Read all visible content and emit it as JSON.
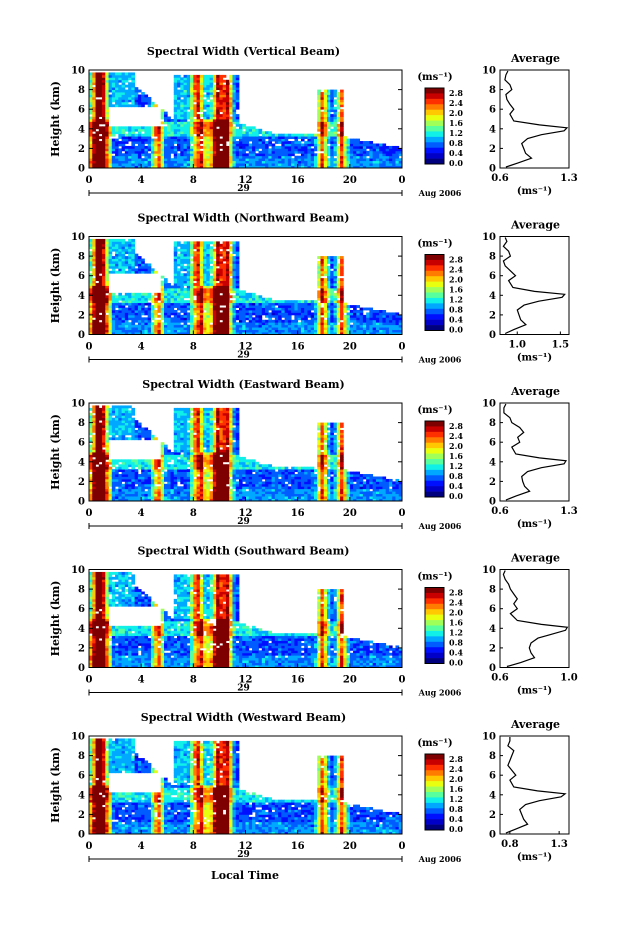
{
  "figure": {
    "xlabel": "Local Time",
    "date_label": "Aug 2006",
    "day_label": "29",
    "unit_label": "(ms⁻¹)",
    "avg_title": "Average",
    "avg_xlabel": "(ms⁻¹)"
  },
  "colorbar": {
    "ticks": [
      "2.8",
      "2.4",
      "2.0",
      "1.6",
      "1.2",
      "0.8",
      "0.4",
      "0.0"
    ],
    "colors": [
      "#00007f",
      "#0000c8",
      "#0010ff",
      "#005cff",
      "#00a8ff",
      "#10f0e8",
      "#58ff9f",
      "#a0ff58",
      "#e8ff10",
      "#ffc800",
      "#ff7c00",
      "#ff3000",
      "#c80000",
      "#7f0000"
    ]
  },
  "chart_data": [
    {
      "type": "heatmap",
      "title": "Spectral Width (Vertical Beam)",
      "ylabel": "Height (km)",
      "xticks": [
        "0",
        "4",
        "8",
        "12",
        "16",
        "20",
        "0"
      ],
      "yticks": [
        "0",
        "2",
        "4",
        "6",
        "8",
        "10"
      ],
      "xlim": [
        0,
        24
      ],
      "ylim": [
        0,
        10
      ],
      "avg": {
        "title": "Average",
        "xticks": [
          "0.6",
          "1.3"
        ],
        "xlim": [
          0.6,
          1.3
        ],
        "yticks": [
          "0",
          "2",
          "4",
          "6",
          "8",
          "10"
        ],
        "profile": [
          [
            0.66,
            0.1
          ],
          [
            0.78,
            0.5
          ],
          [
            0.92,
            1.0
          ],
          [
            0.86,
            1.5
          ],
          [
            0.84,
            2.0
          ],
          [
            0.82,
            2.5
          ],
          [
            0.88,
            3.0
          ],
          [
            1.02,
            3.4
          ],
          [
            1.25,
            3.8
          ],
          [
            1.28,
            4.1
          ],
          [
            1.0,
            4.4
          ],
          [
            0.74,
            4.8
          ],
          [
            0.7,
            5.5
          ],
          [
            0.74,
            6.0
          ],
          [
            0.7,
            6.5
          ],
          [
            0.67,
            7.0
          ],
          [
            0.66,
            7.5
          ],
          [
            0.72,
            8.0
          ],
          [
            0.7,
            8.5
          ],
          [
            0.65,
            9.0
          ],
          [
            0.66,
            9.5
          ],
          [
            0.68,
            9.9
          ]
        ]
      }
    },
    {
      "type": "heatmap",
      "title": "Spectral Width (Northward Beam)",
      "ylabel": "Height (km)",
      "xticks": [
        "0",
        "4",
        "8",
        "12",
        "16",
        "20",
        "0"
      ],
      "yticks": [
        "0",
        "2",
        "4",
        "6",
        "8",
        "10"
      ],
      "xlim": [
        0,
        24
      ],
      "ylim": [
        0,
        10
      ],
      "avg": {
        "title": "Average",
        "xticks": [
          "1.0",
          "1.5"
        ],
        "xlim": [
          0.8,
          1.6
        ],
        "yticks": [
          "0",
          "2",
          "4",
          "6",
          "8",
          "10"
        ],
        "profile": [
          [
            0.86,
            0.1
          ],
          [
            0.96,
            0.5
          ],
          [
            1.1,
            1.0
          ],
          [
            1.04,
            1.5
          ],
          [
            1.02,
            2.0
          ],
          [
            1.0,
            2.5
          ],
          [
            1.08,
            3.0
          ],
          [
            1.25,
            3.4
          ],
          [
            1.52,
            3.8
          ],
          [
            1.55,
            4.1
          ],
          [
            1.2,
            4.4
          ],
          [
            0.95,
            4.8
          ],
          [
            0.9,
            5.5
          ],
          [
            0.98,
            6.0
          ],
          [
            0.92,
            6.5
          ],
          [
            0.86,
            7.0
          ],
          [
            0.84,
            7.5
          ],
          [
            0.92,
            8.0
          ],
          [
            0.9,
            8.5
          ],
          [
            0.84,
            9.0
          ],
          [
            0.88,
            9.5
          ],
          [
            0.86,
            9.9
          ]
        ]
      }
    },
    {
      "type": "heatmap",
      "title": "Spectral Width (Eastward Beam)",
      "ylabel": "Height (km)",
      "xticks": [
        "0",
        "4",
        "8",
        "12",
        "16",
        "20",
        "0"
      ],
      "yticks": [
        "0",
        "2",
        "4",
        "6",
        "8",
        "10"
      ],
      "xlim": [
        0,
        24
      ],
      "ylim": [
        0,
        10
      ],
      "avg": {
        "title": "Average",
        "xticks": [
          "0.6",
          "1.3"
        ],
        "xlim": [
          0.6,
          1.3
        ],
        "yticks": [
          "0",
          "2",
          "4",
          "6",
          "8",
          "10"
        ],
        "profile": [
          [
            0.66,
            0.1
          ],
          [
            0.76,
            0.5
          ],
          [
            0.9,
            1.0
          ],
          [
            0.85,
            1.5
          ],
          [
            0.83,
            2.0
          ],
          [
            0.82,
            2.5
          ],
          [
            0.88,
            3.0
          ],
          [
            1.02,
            3.4
          ],
          [
            1.25,
            3.8
          ],
          [
            1.27,
            4.1
          ],
          [
            1.0,
            4.4
          ],
          [
            0.76,
            4.8
          ],
          [
            0.72,
            5.5
          ],
          [
            0.8,
            6.0
          ],
          [
            0.78,
            6.5
          ],
          [
            0.84,
            7.0
          ],
          [
            0.8,
            7.5
          ],
          [
            0.72,
            8.0
          ],
          [
            0.7,
            8.5
          ],
          [
            0.64,
            9.0
          ],
          [
            0.64,
            9.5
          ],
          [
            0.66,
            9.9
          ]
        ]
      }
    },
    {
      "type": "heatmap",
      "title": "Spectral Width (Southward Beam)",
      "ylabel": "Height (km)",
      "xticks": [
        "0",
        "4",
        "8",
        "12",
        "16",
        "20",
        "0"
      ],
      "yticks": [
        "0",
        "2",
        "4",
        "6",
        "8",
        "10"
      ],
      "xlim": [
        0,
        24
      ],
      "ylim": [
        0,
        10
      ],
      "avg": {
        "title": "Average",
        "xticks": [
          "0.6",
          "1.0"
        ],
        "xlim": [
          0.6,
          1.0
        ],
        "yticks": [
          "0",
          "2",
          "4",
          "6",
          "8",
          "10"
        ],
        "profile": [
          [
            0.64,
            0.1
          ],
          [
            0.72,
            0.5
          ],
          [
            0.8,
            1.0
          ],
          [
            0.78,
            1.5
          ],
          [
            0.77,
            2.0
          ],
          [
            0.78,
            2.5
          ],
          [
            0.82,
            3.0
          ],
          [
            0.9,
            3.4
          ],
          [
            0.98,
            3.8
          ],
          [
            0.99,
            4.1
          ],
          [
            0.84,
            4.4
          ],
          [
            0.7,
            4.8
          ],
          [
            0.66,
            5.5
          ],
          [
            0.7,
            6.0
          ],
          [
            0.68,
            6.5
          ],
          [
            0.7,
            7.0
          ],
          [
            0.68,
            7.5
          ],
          [
            0.66,
            8.0
          ],
          [
            0.65,
            8.5
          ],
          [
            0.63,
            9.0
          ],
          [
            0.62,
            9.5
          ],
          [
            0.63,
            9.9
          ]
        ]
      }
    },
    {
      "type": "heatmap",
      "title": "Spectral Width (Westward Beam)",
      "ylabel": "Height (km)",
      "xticks": [
        "0",
        "4",
        "8",
        "12",
        "16",
        "20",
        "0"
      ],
      "yticks": [
        "0",
        "2",
        "4",
        "6",
        "8",
        "10"
      ],
      "xlim": [
        0,
        24
      ],
      "ylim": [
        0,
        10
      ],
      "avg": {
        "title": "Average",
        "xticks": [
          "0.8",
          "1.3"
        ],
        "xlim": [
          0.7,
          1.4
        ],
        "yticks": [
          "0",
          "2",
          "4",
          "6",
          "8",
          "10"
        ],
        "profile": [
          [
            0.76,
            0.1
          ],
          [
            0.86,
            0.5
          ],
          [
            0.98,
            1.0
          ],
          [
            0.94,
            1.5
          ],
          [
            0.92,
            2.0
          ],
          [
            0.9,
            2.5
          ],
          [
            0.96,
            3.0
          ],
          [
            1.1,
            3.4
          ],
          [
            1.32,
            3.8
          ],
          [
            1.36,
            4.1
          ],
          [
            1.08,
            4.4
          ],
          [
            0.84,
            4.8
          ],
          [
            0.8,
            5.5
          ],
          [
            0.86,
            6.0
          ],
          [
            0.82,
            6.5
          ],
          [
            0.78,
            7.0
          ],
          [
            0.8,
            7.5
          ],
          [
            0.82,
            8.0
          ],
          [
            0.84,
            8.5
          ],
          [
            0.78,
            9.0
          ],
          [
            0.8,
            9.5
          ],
          [
            0.8,
            9.9
          ]
        ]
      }
    }
  ]
}
